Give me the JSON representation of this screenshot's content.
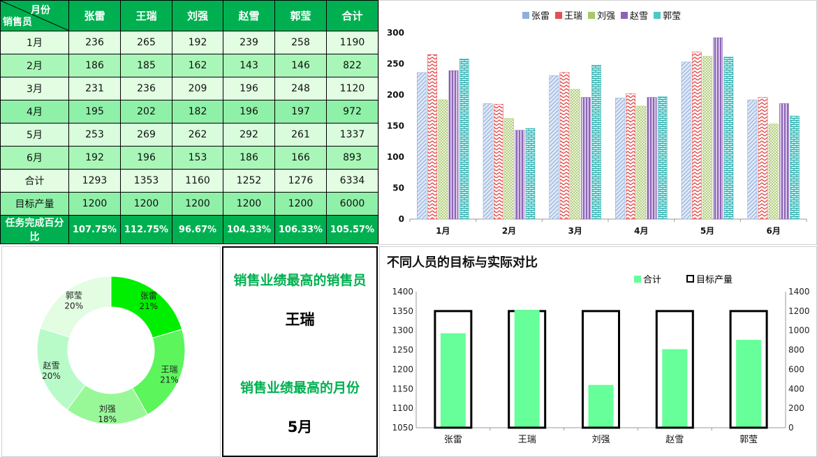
{
  "table": {
    "header_top": "月份",
    "header_bottom": "销售员",
    "columns": [
      "张雷",
      "王瑞",
      "刘强",
      "赵雪",
      "郭莹",
      "合计"
    ],
    "rows": [
      {
        "label": "1月",
        "values": [
          "236",
          "265",
          "192",
          "239",
          "258",
          "1190"
        ]
      },
      {
        "label": "2月",
        "values": [
          "186",
          "185",
          "162",
          "143",
          "146",
          "822"
        ]
      },
      {
        "label": "3月",
        "values": [
          "231",
          "236",
          "209",
          "196",
          "248",
          "1120"
        ]
      },
      {
        "label": "4月",
        "values": [
          "195",
          "202",
          "182",
          "196",
          "197",
          "972"
        ]
      },
      {
        "label": "5月",
        "values": [
          "253",
          "269",
          "262",
          "292",
          "261",
          "1337"
        ]
      },
      {
        "label": "6月",
        "values": [
          "192",
          "196",
          "153",
          "186",
          "166",
          "893"
        ]
      },
      {
        "label": "合计",
        "values": [
          "1293",
          "1353",
          "1160",
          "1252",
          "1276",
          "6334"
        ]
      },
      {
        "label": "目标产量",
        "values": [
          "1200",
          "1200",
          "1200",
          "1200",
          "1200",
          "6000"
        ]
      }
    ],
    "pct_row": {
      "label": "任务完成百分比",
      "values": [
        "107.75%",
        "112.75%",
        "96.67%",
        "104.33%",
        "106.33%",
        "105.57%"
      ]
    }
  },
  "info": {
    "best_seller_title": "销售业绩最高的销售员",
    "best_seller_value": "王瑞",
    "best_month_title": "销售业绩最高的月份",
    "best_month_value": "5月"
  },
  "chart_data": [
    {
      "type": "bar",
      "categories": [
        "1月",
        "2月",
        "3月",
        "4月",
        "5月",
        "6月"
      ],
      "series": [
        {
          "name": "张雷",
          "color": "#8eb0de",
          "values": [
            236,
            186,
            231,
            195,
            253,
            192
          ]
        },
        {
          "name": "王瑞",
          "color": "#e65050",
          "values": [
            265,
            185,
            236,
            202,
            269,
            196
          ]
        },
        {
          "name": "刘强",
          "color": "#a8c86a",
          "values": [
            192,
            162,
            209,
            182,
            262,
            153
          ]
        },
        {
          "name": "赵雪",
          "color": "#8d62b8",
          "values": [
            239,
            143,
            196,
            196,
            292,
            186
          ]
        },
        {
          "name": "郭莹",
          "color": "#4bc8c8",
          "values": [
            258,
            146,
            248,
            197,
            261,
            166
          ]
        }
      ],
      "ylim": [
        0,
        300
      ],
      "yticks": [
        0,
        50,
        100,
        150,
        200,
        250,
        300
      ],
      "legend": "top"
    },
    {
      "type": "pie",
      "donut": true,
      "slices": [
        {
          "label": "张雷",
          "pct_label": "21%",
          "value": 1293,
          "color": "#00ee00"
        },
        {
          "label": "王瑞",
          "pct_label": "21%",
          "value": 1353,
          "color": "#5cf55c"
        },
        {
          "label": "刘强",
          "pct_label": "18%",
          "value": 1160,
          "color": "#98f898"
        },
        {
          "label": "赵雪",
          "pct_label": "20%",
          "value": 1252,
          "color": "#b8fbc8"
        },
        {
          "label": "郭莹",
          "pct_label": "20%",
          "value": 1276,
          "color": "#e2fde2"
        }
      ]
    },
    {
      "type": "bar",
      "title": "不同人员的目标与实际对比",
      "categories": [
        "张雷",
        "王瑞",
        "刘强",
        "赵雪",
        "郭莹"
      ],
      "series": [
        {
          "name": "合计",
          "axis": "left",
          "color": "#66ff99",
          "values": [
            1293,
            1353,
            1160,
            1252,
            1276
          ]
        },
        {
          "name": "目标产量",
          "axis": "right",
          "color": "#000000",
          "values": [
            1200,
            1200,
            1200,
            1200,
            1200
          ]
        }
      ],
      "ylim_left": [
        1050,
        1400
      ],
      "yticks_left": [
        1050,
        1100,
        1150,
        1200,
        1250,
        1300,
        1350,
        1400
      ],
      "ylim_right": [
        0,
        1400
      ],
      "yticks_right": [
        0,
        200,
        400,
        600,
        800,
        1000,
        1200,
        1400
      ],
      "legend": "top"
    }
  ]
}
